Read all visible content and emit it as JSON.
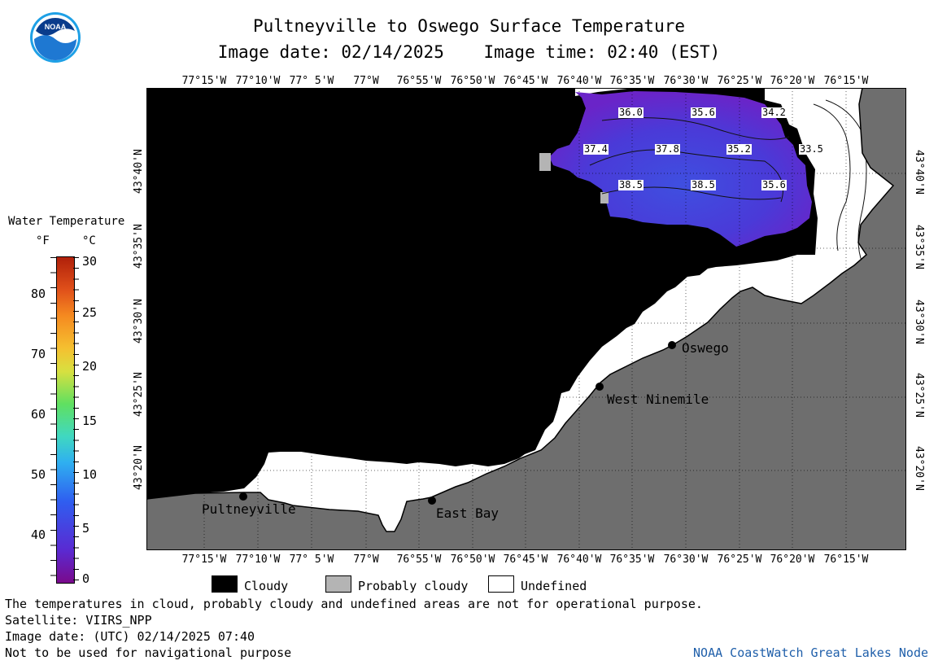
{
  "header": {
    "title": "Pultneyville to Oswego Surface Temperature",
    "image_date": "Image date: 02/14/2025",
    "image_time": "Image time: 02:40 (EST)"
  },
  "map": {
    "lon_labels": [
      "77°15'W",
      "77°10'W",
      "77° 5'W",
      "77°W",
      "76°55'W",
      "76°50'W",
      "76°45'W",
      "76°40'W",
      "76°35'W",
      "76°30'W",
      "76°25'W",
      "76°20'W",
      "76°15'W"
    ],
    "lat_labels": [
      "43°40'N",
      "43°35'N",
      "43°30'N",
      "43°25'N",
      "43°20'N"
    ],
    "places": [
      {
        "name": "Pultneyville"
      },
      {
        "name": "East Bay"
      },
      {
        "name": "West Ninemile"
      },
      {
        "name": "Oswego"
      }
    ],
    "temp_labels": [
      "36.0",
      "35.6",
      "34.2",
      "37.4",
      "37.8",
      "35.2",
      "33.5",
      "38.5",
      "38.5",
      "35.6"
    ],
    "colors": {
      "cloudy": "#000000",
      "land": "#6e6e6e",
      "undefined": "#ffffff",
      "probably_cloudy": "#b4b4b4",
      "water_cold": "#5a2ad2"
    }
  },
  "legend": {
    "title": "Water Temperature",
    "unit_f": "°F",
    "unit_c": "°C",
    "f_ticks": [
      "80",
      "70",
      "60",
      "50",
      "40"
    ],
    "c_ticks": [
      "30",
      "25",
      "20",
      "15",
      "10",
      "5",
      "0"
    ]
  },
  "key": {
    "cloudy": "Cloudy",
    "probably_cloudy": "Probably cloudy",
    "undefined": "Undefined"
  },
  "footer": {
    "disclaimer": "The temperatures in cloud, probably cloudy and undefined areas are not for operational purpose.",
    "satellite": "Satellite: VIIRS_NPP",
    "utc_date": "Image date: (UTC) 02/14/2025  07:40",
    "nav_warning": "Not to be used for navigational purpose",
    "credit": "NOAA CoastWatch Great Lakes Node"
  },
  "logo_text": "NOAA"
}
